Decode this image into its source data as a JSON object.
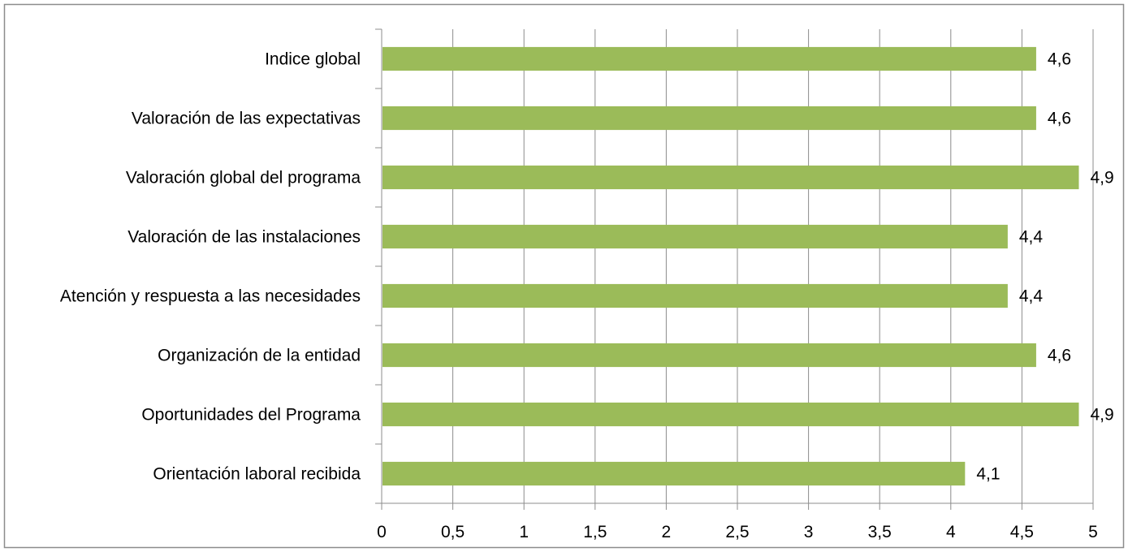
{
  "chart_data": {
    "type": "bar",
    "orientation": "horizontal",
    "title": "",
    "xlabel": "",
    "ylabel": "",
    "categories": [
      "Indice global",
      "Valoración de las expectativas",
      "Valoración global del programa",
      "Valoración de las instalaciones",
      "Atención y respuesta a las necesidades",
      "Organización de la entidad",
      "Oportunidades del Programa",
      "Orientación laboral recibida"
    ],
    "values": [
      4.6,
      4.6,
      4.9,
      4.4,
      4.4,
      4.6,
      4.9,
      4.1
    ],
    "data_labels": [
      "4,6",
      "4,6",
      "4,9",
      "4,4",
      "4,4",
      "4,6",
      "4,9",
      "4,1"
    ],
    "xlim": [
      0,
      5
    ],
    "x_ticks": [
      0,
      0.5,
      1,
      1.5,
      2,
      2.5,
      3,
      3.5,
      4,
      4.5,
      5
    ],
    "x_tick_labels": [
      "0",
      "0,5",
      "1",
      "1,5",
      "2",
      "2,5",
      "3",
      "3,5",
      "4",
      "4,5",
      "5"
    ],
    "grid": "vertical",
    "legend": "none",
    "bar_color": "#9bbb59",
    "grid_color": "#8c8c8c",
    "border_color": "#8c8c8c"
  }
}
